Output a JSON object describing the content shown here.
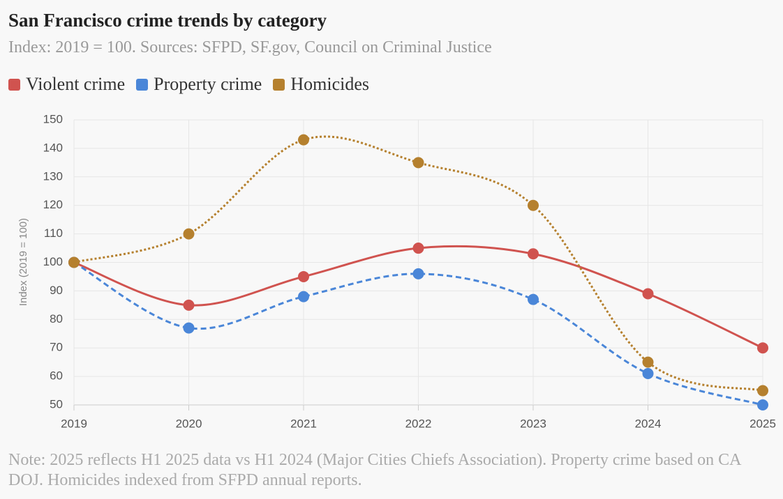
{
  "chart_data": {
    "type": "line",
    "title": "San Francisco crime trends by category",
    "subtitle": "Index: 2019 = 100. Sources: SFPD, SF.gov, Council on Criminal Justice",
    "y_label": "Index (2019 = 100)",
    "note": "Note: 2025 reflects H1 2025 data vs H1 2024 (Major Cities Chiefs Association). Property crime based on CA DOJ. Homicides indexed from SFPD annual reports.",
    "categories": [
      "2019",
      "2020",
      "2021",
      "2022",
      "2023",
      "2024",
      "2025"
    ],
    "series": [
      {
        "name": "Violent crime",
        "color": "#d0534f",
        "dash": "solid",
        "values": [
          100,
          85,
          95,
          105,
          103,
          89,
          70
        ]
      },
      {
        "name": "Property crime",
        "color": "#4a86d8",
        "dash": "dashed",
        "values": [
          100,
          77,
          88,
          96,
          87,
          61,
          50
        ]
      },
      {
        "name": "Homicides",
        "color": "#b5802e",
        "dash": "dotted",
        "values": [
          100,
          110,
          143,
          135,
          120,
          65,
          55
        ]
      }
    ],
    "ylim": [
      50,
      150
    ],
    "yticks": [
      50,
      60,
      70,
      80,
      90,
      100,
      110,
      120,
      130,
      140,
      150
    ],
    "grid": true
  }
}
